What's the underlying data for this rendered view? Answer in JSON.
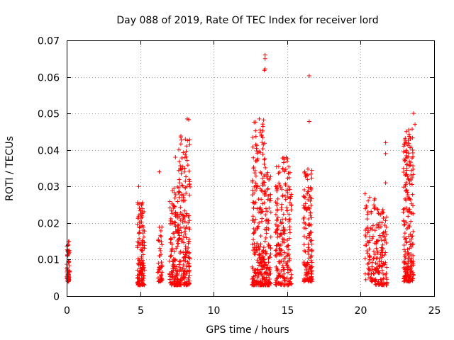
{
  "chart_data": {
    "type": "scatter",
    "title": "Day 088 of 2019, Rate Of TEC Index for receiver lord",
    "xlabel": "GPS time / hours",
    "ylabel": "ROTI / TECUs",
    "xlim": [
      0,
      25
    ],
    "ylim": [
      0,
      0.07
    ],
    "xticks": [
      0,
      5,
      10,
      15,
      20,
      25
    ],
    "xtick_labels": [
      "0",
      "5",
      "10",
      "15",
      "20",
      "25"
    ],
    "yticks": [
      0,
      0.01,
      0.02,
      0.03,
      0.04,
      0.05,
      0.06,
      0.07
    ],
    "ytick_labels": [
      "0",
      "0.01",
      "0.02",
      "0.03",
      "0.04",
      "0.05",
      "0.06",
      "0.07"
    ],
    "grid": true,
    "marker": "+",
    "color": "#ff0000",
    "clusters": [
      {
        "x_range": [
          0.0,
          0.2
        ],
        "y_range": [
          0.004,
          0.015
        ],
        "count": 60
      },
      {
        "x_range": [
          4.8,
          5.3
        ],
        "y_range": [
          0.003,
          0.026
        ],
        "count": 140
      },
      {
        "x_range": [
          6.2,
          6.5
        ],
        "y_range": [
          0.004,
          0.02
        ],
        "count": 45
      },
      {
        "x_range": [
          7.0,
          7.6
        ],
        "y_range": [
          0.003,
          0.03
        ],
        "count": 130
      },
      {
        "x_range": [
          7.6,
          8.4
        ],
        "y_range": [
          0.003,
          0.046
        ],
        "count": 200
      },
      {
        "x_range": [
          12.6,
          13.5
        ],
        "y_range": [
          0.003,
          0.048
        ],
        "count": 240
      },
      {
        "x_range": [
          13.5,
          13.9
        ],
        "y_range": [
          0.003,
          0.036
        ],
        "count": 90
      },
      {
        "x_range": [
          14.2,
          15.3
        ],
        "y_range": [
          0.003,
          0.038
        ],
        "count": 220
      },
      {
        "x_range": [
          16.1,
          16.7
        ],
        "y_range": [
          0.004,
          0.035
        ],
        "count": 150
      },
      {
        "x_range": [
          20.3,
          21.0
        ],
        "y_range": [
          0.004,
          0.028
        ],
        "count": 80
      },
      {
        "x_range": [
          21.0,
          21.8
        ],
        "y_range": [
          0.003,
          0.024
        ],
        "count": 120
      },
      {
        "x_range": [
          22.9,
          23.6
        ],
        "y_range": [
          0.004,
          0.046
        ],
        "count": 230
      }
    ],
    "outliers": [
      {
        "x": 13.5,
        "y": 0.066
      },
      {
        "x": 13.5,
        "y": 0.065
      },
      {
        "x": 13.5,
        "y": 0.0622
      },
      {
        "x": 13.45,
        "y": 0.0618
      },
      {
        "x": 16.5,
        "y": 0.0603
      },
      {
        "x": 16.5,
        "y": 0.0478
      },
      {
        "x": 23.6,
        "y": 0.05
      },
      {
        "x": 8.2,
        "y": 0.0485
      },
      {
        "x": 8.3,
        "y": 0.0483
      },
      {
        "x": 13.1,
        "y": 0.0485
      },
      {
        "x": 13.4,
        "y": 0.0482
      },
      {
        "x": 6.3,
        "y": 0.034
      },
      {
        "x": 4.9,
        "y": 0.03
      },
      {
        "x": 7.4,
        "y": 0.038
      },
      {
        "x": 21.7,
        "y": 0.042
      },
      {
        "x": 21.7,
        "y": 0.039
      },
      {
        "x": 21.7,
        "y": 0.031
      },
      {
        "x": 20.3,
        "y": 0.028
      },
      {
        "x": 23.7,
        "y": 0.047
      }
    ]
  }
}
